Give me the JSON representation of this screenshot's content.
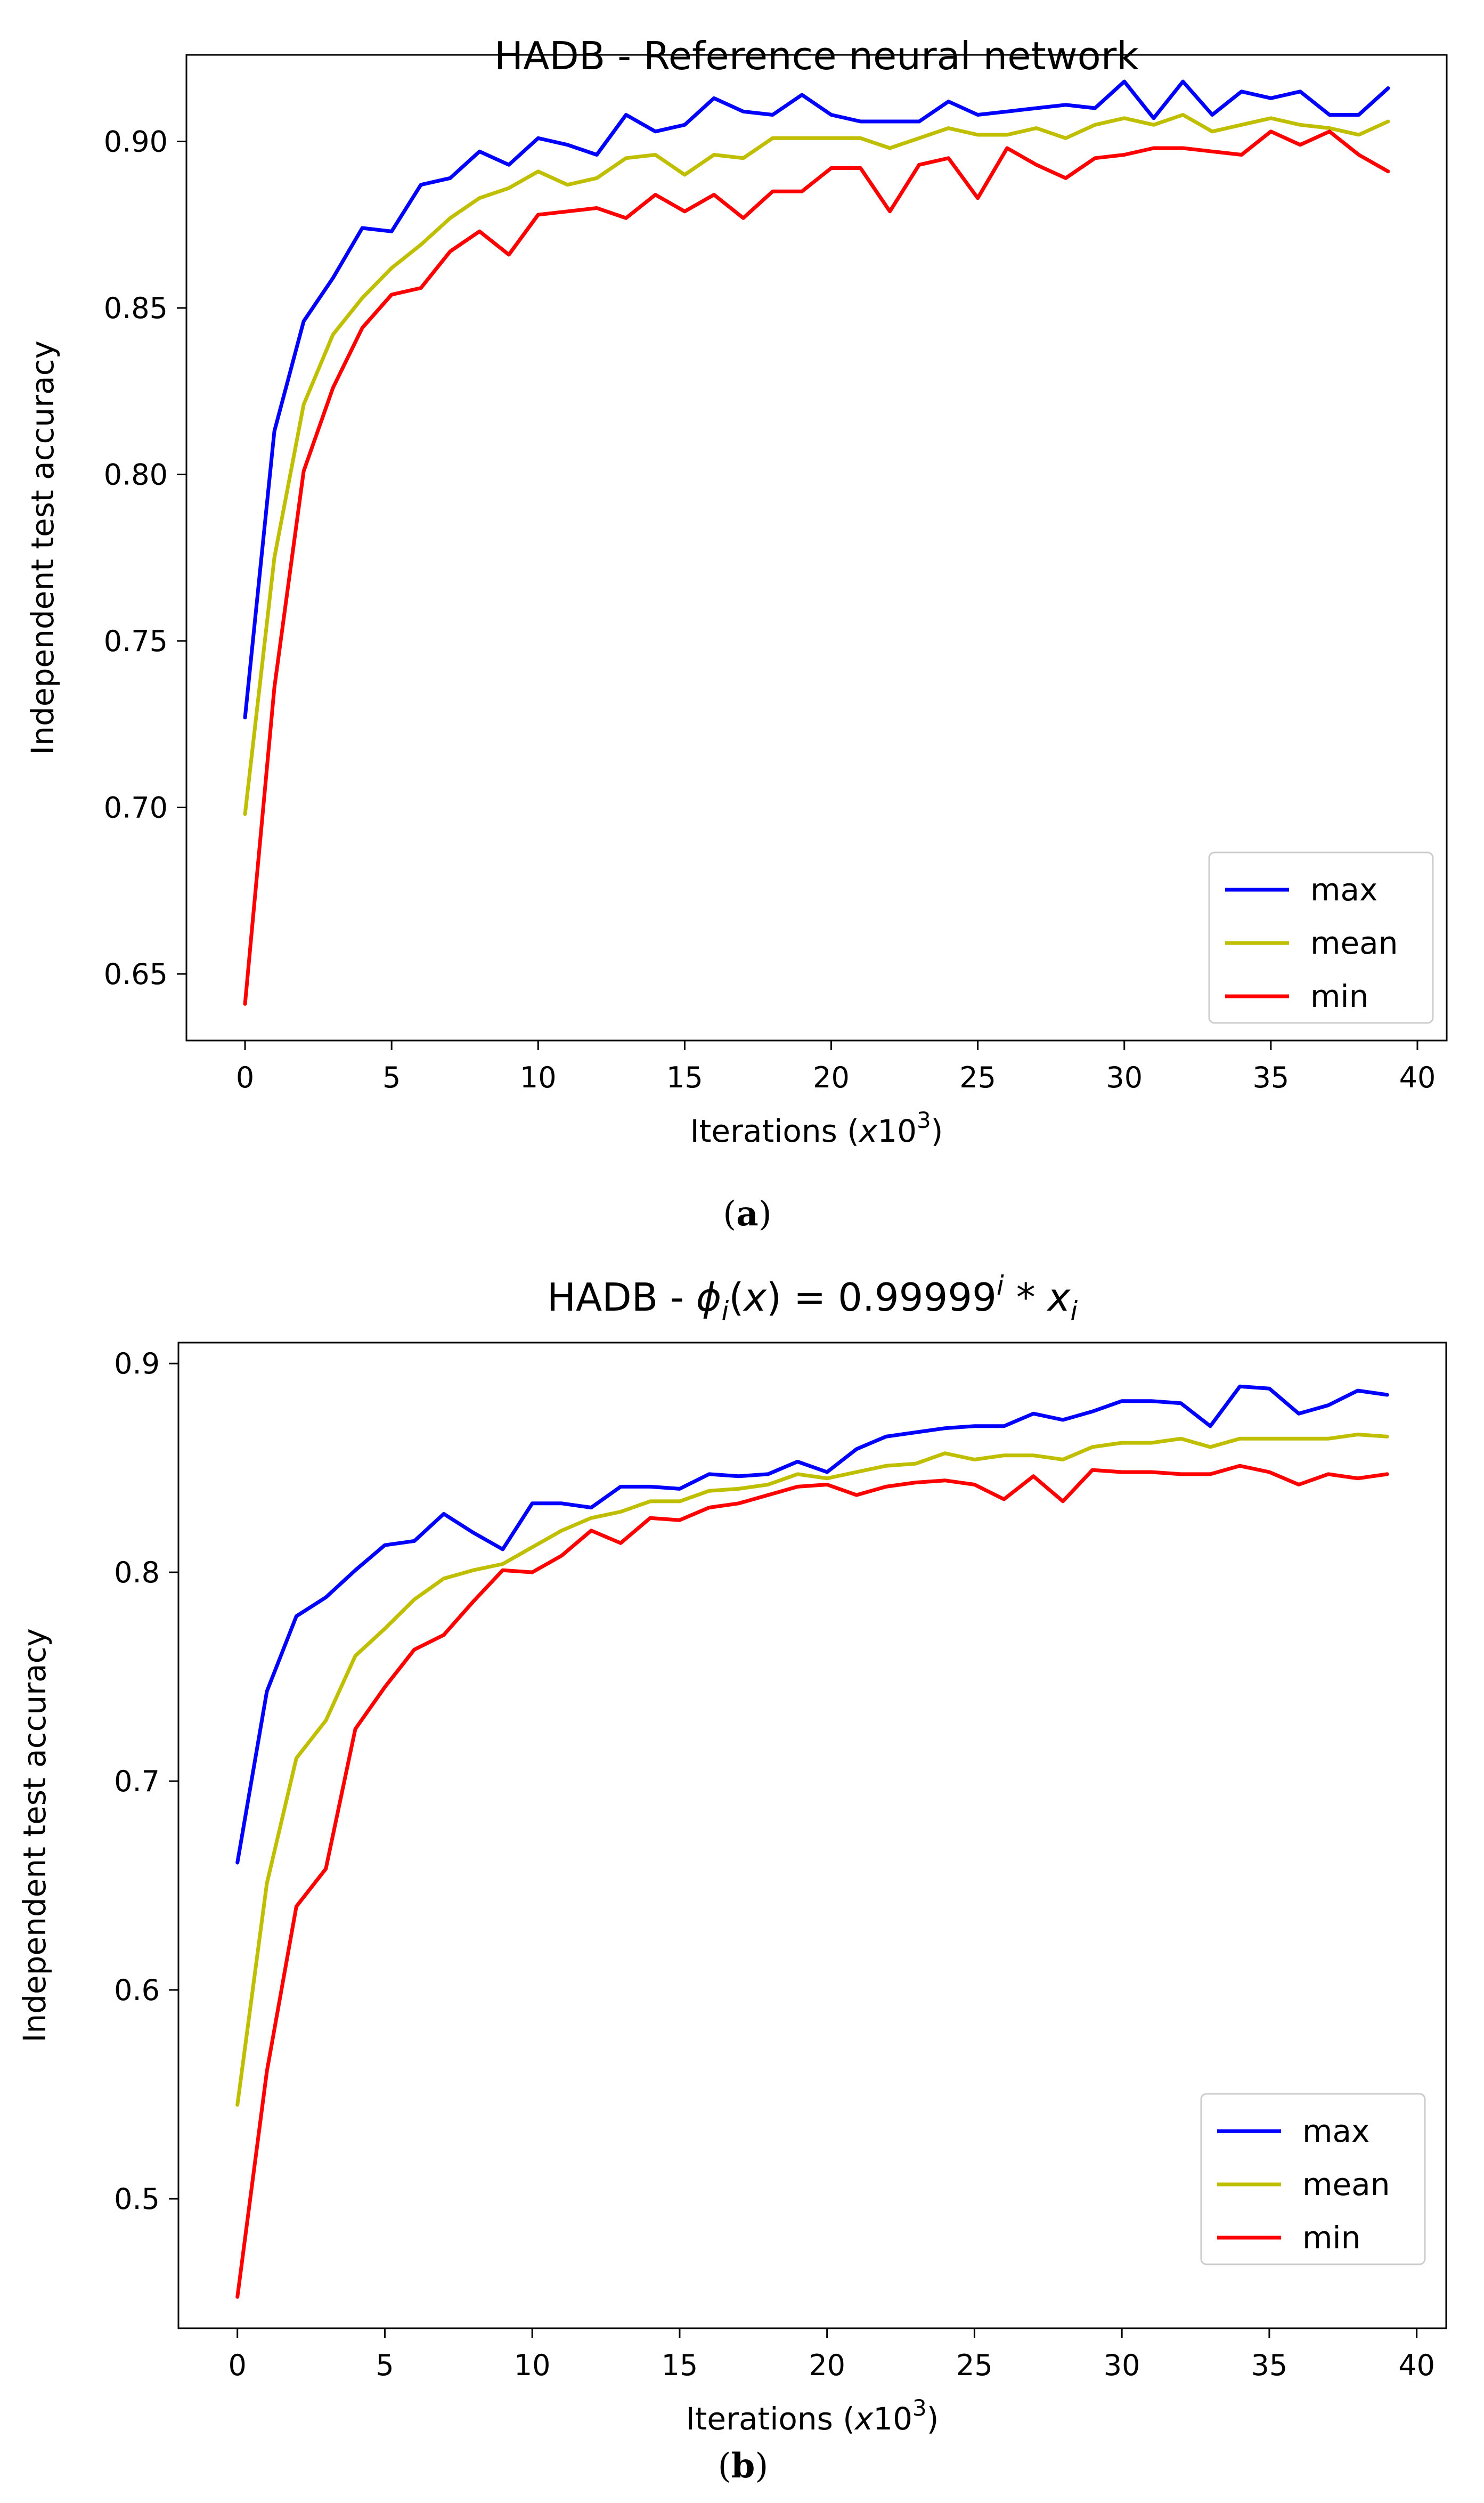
{
  "chart_data": [
    {
      "type": "line",
      "panel": "a",
      "title": "HADB - Reference neural network",
      "xlabel": "Iterations (x10^3)",
      "ylabel": "Independent test accuracy",
      "caption": "(a)",
      "xlim": [
        -2,
        41
      ],
      "ylim": [
        0.63,
        0.926
      ],
      "xticks": [
        0,
        5,
        10,
        15,
        20,
        25,
        30,
        35,
        40
      ],
      "xtick_labels": [
        "0",
        "5",
        "10",
        "15",
        "20",
        "25",
        "30",
        "35",
        "40"
      ],
      "yticks": [
        0.65,
        0.7,
        0.75,
        0.8,
        0.85,
        0.9
      ],
      "ytick_labels": [
        "0.65",
        "0.70",
        "0.75",
        "0.80",
        "0.85",
        "0.90"
      ],
      "legend_position": "lower-right",
      "x": [
        0,
        1,
        2,
        3,
        4,
        5,
        6,
        7,
        8,
        9,
        10,
        11,
        12,
        13,
        14,
        15,
        16,
        17,
        18,
        19,
        20,
        21,
        22,
        23,
        24,
        25,
        26,
        27,
        28,
        29,
        30,
        31,
        32,
        33,
        34,
        35,
        36,
        37,
        38,
        39
      ],
      "series": [
        {
          "name": "max",
          "color": "#0000ff",
          "values": [
            0.727,
            0.813,
            0.846,
            0.859,
            0.874,
            0.873,
            0.887,
            0.889,
            0.897,
            0.893,
            0.901,
            0.899,
            0.896,
            0.908,
            0.903,
            0.905,
            0.913,
            0.909,
            0.908,
            0.914,
            0.908,
            0.906,
            0.906,
            0.906,
            0.912,
            0.908,
            0.909,
            0.91,
            0.911,
            0.91,
            0.918,
            0.907,
            0.918,
            0.908,
            0.915,
            0.913,
            0.915,
            0.908,
            0.908,
            0.916
          ]
        },
        {
          "name": "mean",
          "color": "#bfbf00",
          "values": [
            0.698,
            0.775,
            0.821,
            0.842,
            0.853,
            0.862,
            0.869,
            0.877,
            0.883,
            0.886,
            0.891,
            0.887,
            0.889,
            0.895,
            0.896,
            0.89,
            0.896,
            0.895,
            0.901,
            0.901,
            0.901,
            0.901,
            0.898,
            0.901,
            0.904,
            0.902,
            0.902,
            0.904,
            0.901,
            0.905,
            0.907,
            0.905,
            0.908,
            0.903,
            0.905,
            0.907,
            0.905,
            0.904,
            0.902,
            0.906
          ]
        },
        {
          "name": "min",
          "color": "#ff0000",
          "values": [
            0.641,
            0.736,
            0.801,
            0.826,
            0.844,
            0.854,
            0.856,
            0.867,
            0.873,
            0.866,
            0.878,
            0.879,
            0.88,
            0.877,
            0.884,
            0.879,
            0.884,
            0.877,
            0.885,
            0.885,
            0.892,
            0.892,
            0.879,
            0.893,
            0.895,
            0.883,
            0.898,
            0.893,
            0.889,
            0.895,
            0.896,
            0.898,
            0.898,
            0.897,
            0.896,
            0.903,
            0.899,
            0.903,
            0.896,
            0.891
          ]
        }
      ]
    },
    {
      "type": "line",
      "panel": "b",
      "title": "HADB - ϕi(x) = 0.99999^i * xi",
      "xlabel": "Iterations (x10^3)",
      "ylabel": "Independent test accuracy",
      "caption": "(b)",
      "xlim": [
        -2,
        41
      ],
      "ylim": [
        0.438,
        0.91
      ],
      "xticks": [
        0,
        5,
        10,
        15,
        20,
        25,
        30,
        35,
        40
      ],
      "xtick_labels": [
        "0",
        "5",
        "10",
        "15",
        "20",
        "25",
        "30",
        "35",
        "40"
      ],
      "yticks": [
        0.5,
        0.6,
        0.7,
        0.8,
        0.9
      ],
      "ytick_labels": [
        "0.5",
        "0.6",
        "0.7",
        "0.8",
        "0.9"
      ],
      "legend_position": "lower-right",
      "x": [
        0,
        1,
        2,
        3,
        4,
        5,
        6,
        7,
        8,
        9,
        10,
        11,
        12,
        13,
        14,
        15,
        16,
        17,
        18,
        19,
        20,
        21,
        22,
        23,
        24,
        25,
        26,
        27,
        28,
        29,
        30,
        31,
        32,
        33,
        34,
        35,
        36,
        37,
        38,
        39
      ],
      "series": [
        {
          "name": "max",
          "color": "#0000ff",
          "values": [
            0.661,
            0.743,
            0.779,
            0.788,
            0.801,
            0.813,
            0.815,
            0.828,
            0.819,
            0.811,
            0.833,
            0.833,
            0.831,
            0.841,
            0.841,
            0.84,
            0.847,
            0.846,
            0.847,
            0.853,
            0.848,
            0.859,
            0.865,
            0.867,
            0.869,
            0.87,
            0.87,
            0.876,
            0.873,
            0.877,
            0.882,
            0.882,
            0.881,
            0.87,
            0.889,
            0.888,
            0.876,
            0.88,
            0.887,
            0.885
          ]
        },
        {
          "name": "mean",
          "color": "#bfbf00",
          "values": [
            0.545,
            0.651,
            0.711,
            0.729,
            0.76,
            0.773,
            0.787,
            0.797,
            0.801,
            0.804,
            0.812,
            0.82,
            0.826,
            0.829,
            0.834,
            0.834,
            0.839,
            0.84,
            0.842,
            0.847,
            0.845,
            0.848,
            0.851,
            0.852,
            0.857,
            0.854,
            0.856,
            0.856,
            0.854,
            0.86,
            0.862,
            0.862,
            0.864,
            0.86,
            0.864,
            0.864,
            0.864,
            0.864,
            0.866,
            0.865
          ]
        },
        {
          "name": "min",
          "color": "#ff0000",
          "values": [
            0.453,
            0.561,
            0.64,
            0.658,
            0.725,
            0.745,
            0.763,
            0.77,
            0.786,
            0.801,
            0.8,
            0.808,
            0.82,
            0.814,
            0.826,
            0.825,
            0.831,
            0.833,
            0.837,
            0.841,
            0.842,
            0.837,
            0.841,
            0.843,
            0.844,
            0.842,
            0.835,
            0.846,
            0.834,
            0.849,
            0.848,
            0.848,
            0.847,
            0.847,
            0.851,
            0.848,
            0.842,
            0.847,
            0.845,
            0.847
          ]
        }
      ]
    }
  ]
}
